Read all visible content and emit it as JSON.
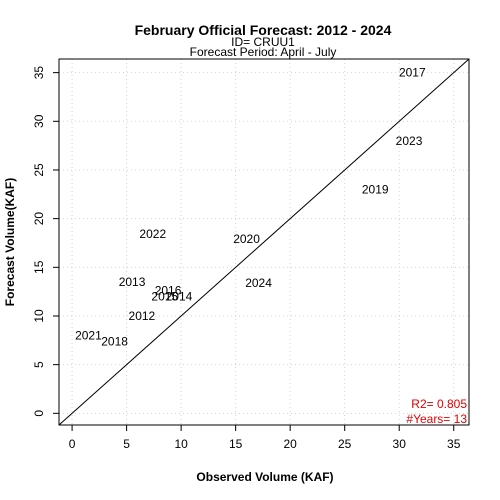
{
  "chart_data": {
    "type": "scatter",
    "title": "February Official Forecast: 2012 - 2024",
    "subtitle_lines": [
      "ID= CRUU1",
      "Forecast Period:  April - July"
    ],
    "xlabel": "Observed Volume (KAF)",
    "ylabel": "Forecast Volume(KAF)",
    "xlim": [
      -1.2,
      36.4
    ],
    "ylim": [
      -1.2,
      36.4
    ],
    "x_ticks": [
      0,
      5,
      10,
      15,
      20,
      25,
      30,
      35
    ],
    "y_ticks": [
      0,
      5,
      10,
      15,
      20,
      25,
      30,
      35
    ],
    "grid": true,
    "reference_line": "1:1",
    "points": [
      {
        "label": "2012",
        "x": 6.4,
        "y": 10.0
      },
      {
        "label": "2013",
        "x": 5.5,
        "y": 13.5
      },
      {
        "label": "2014",
        "x": 9.8,
        "y": 12.0
      },
      {
        "label": "2015",
        "x": 8.5,
        "y": 12.0
      },
      {
        "label": "2016",
        "x": 8.8,
        "y": 12.6
      },
      {
        "label": "2017",
        "x": 31.2,
        "y": 35.0
      },
      {
        "label": "2018",
        "x": 3.9,
        "y": 7.4
      },
      {
        "label": "2019",
        "x": 27.8,
        "y": 23.0
      },
      {
        "label": "2020",
        "x": 16.0,
        "y": 17.9
      },
      {
        "label": "2021",
        "x": 1.5,
        "y": 8.0
      },
      {
        "label": "2022",
        "x": 7.4,
        "y": 18.4
      },
      {
        "label": "2023",
        "x": 30.9,
        "y": 28.0
      },
      {
        "label": "2024",
        "x": 17.1,
        "y": 13.4
      }
    ],
    "stats": {
      "r2": "R2=  0.805",
      "years": "#Years=  13"
    },
    "colors": {
      "stats": "#e00000",
      "grid": "#d3d3d3"
    }
  }
}
